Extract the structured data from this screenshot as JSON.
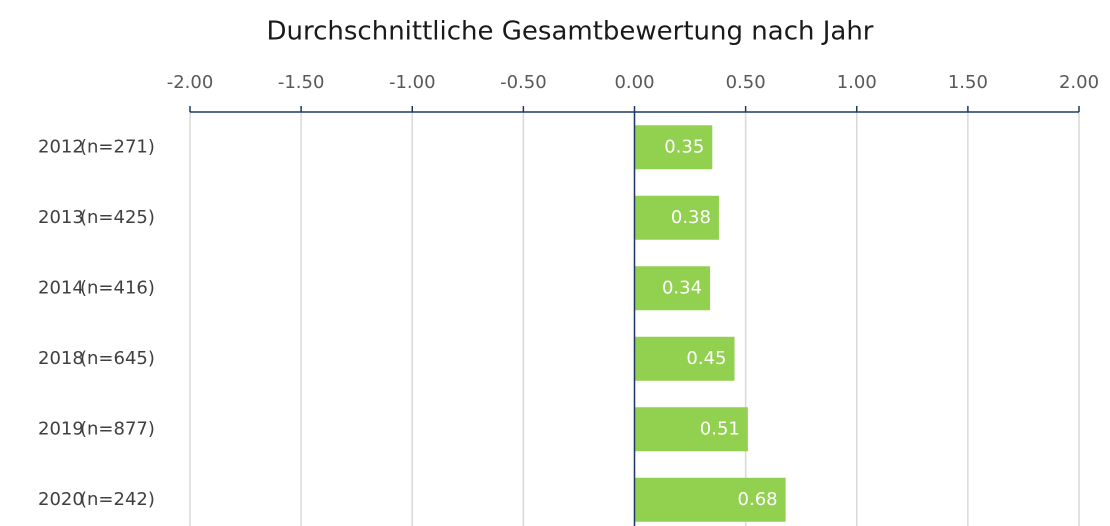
{
  "chart_data": {
    "type": "bar",
    "orientation": "horizontal",
    "title": "Durchschnittliche Gesamtbewertung nach Jahr",
    "categories": [
      "2012",
      "2013",
      "2014",
      "2018",
      "2019",
      "2020"
    ],
    "sample_sizes": [
      "(n=271)",
      "(n=425)",
      "(n=416)",
      "(n=645)",
      "(n=877)",
      "(n=242)"
    ],
    "values": [
      0.35,
      0.38,
      0.34,
      0.45,
      0.51,
      0.68
    ],
    "color": "#92d050",
    "xlim": [
      -2,
      2
    ],
    "xticks": [
      {
        "value": -2,
        "label": "-2.00"
      },
      {
        "value": -1.5,
        "label": "-1.50"
      },
      {
        "value": -1,
        "label": "-1.00"
      },
      {
        "value": -0.5,
        "label": "-0.50"
      },
      {
        "value": 0,
        "label": "0.00"
      },
      {
        "value": 0.5,
        "label": "0.50"
      },
      {
        "value": 1,
        "label": "1.00"
      },
      {
        "value": 1.5,
        "label": "1.50"
      },
      {
        "value": 2,
        "label": "2.00"
      }
    ],
    "grid": true
  }
}
